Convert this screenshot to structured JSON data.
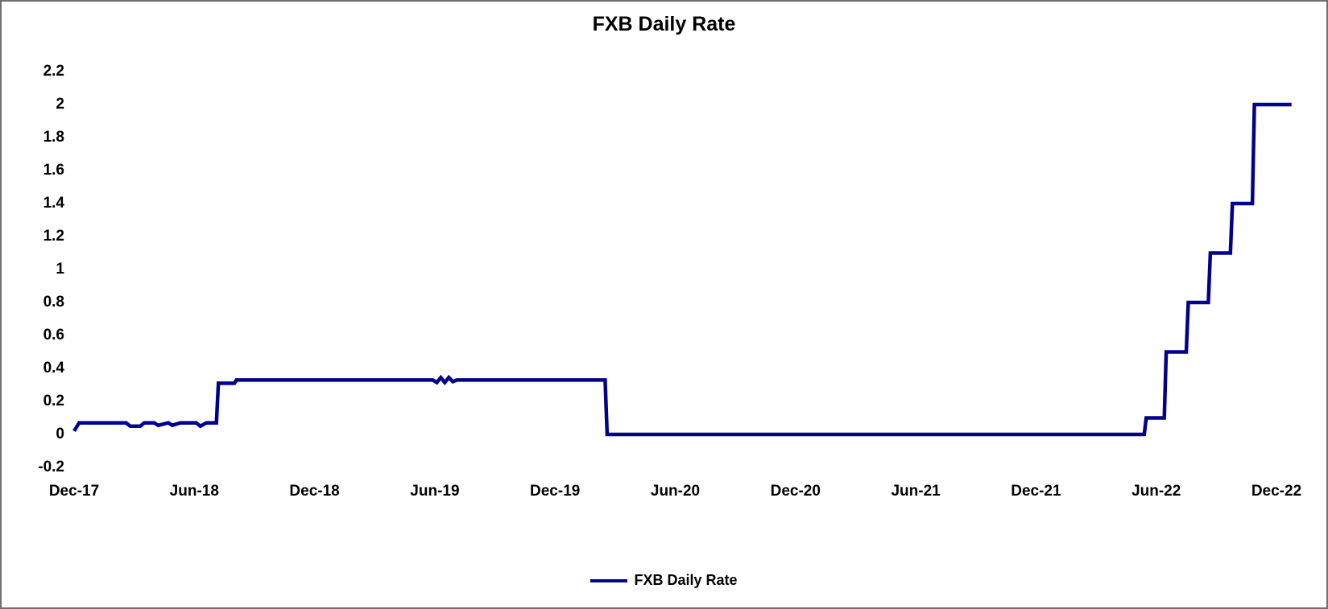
{
  "window": {
    "background_color": "#ffffff",
    "border_color": "#6e6e6e"
  },
  "chart_data": {
    "type": "line",
    "title": "FXB Daily Rate",
    "xlabel": "",
    "ylabel": "",
    "grid": false,
    "line_color": "#00008B",
    "text_color": "#000000",
    "legend": {
      "position": "bottom-center",
      "label": "FXB Daily Rate",
      "swatch_color": "#00008B"
    },
    "x_axis": {
      "unit": "months-since-Dec-2017",
      "range_months": [
        0,
        60.75
      ],
      "ticks": [
        {
          "label": "Dec-17",
          "month": 0
        },
        {
          "label": "Jun-18",
          "month": 6
        },
        {
          "label": "Dec-18",
          "month": 12
        },
        {
          "label": "Jun-19",
          "month": 18
        },
        {
          "label": "Dec-19",
          "month": 24
        },
        {
          "label": "Jun-20",
          "month": 30
        },
        {
          "label": "Dec-20",
          "month": 36
        },
        {
          "label": "Jun-21",
          "month": 42
        },
        {
          "label": "Dec-21",
          "month": 48
        },
        {
          "label": "Jun-22",
          "month": 54
        },
        {
          "label": "Dec-22",
          "month": 60
        }
      ]
    },
    "y_axis": {
      "range": [
        -0.2,
        2.2
      ],
      "ticks": [
        {
          "label": "2.2",
          "value": 2.2
        },
        {
          "label": "2",
          "value": 2.0
        },
        {
          "label": "1.8",
          "value": 1.8
        },
        {
          "label": "1.6",
          "value": 1.6
        },
        {
          "label": "1.4",
          "value": 1.4
        },
        {
          "label": "1.2",
          "value": 1.2
        },
        {
          "label": "1",
          "value": 1.0
        },
        {
          "label": "0.8",
          "value": 0.8
        },
        {
          "label": "0.6",
          "value": 0.6
        },
        {
          "label": "0.4",
          "value": 0.4
        },
        {
          "label": "0.2",
          "value": 0.2
        },
        {
          "label": "0",
          "value": 0.0
        },
        {
          "label": "-0.2",
          "value": -0.2
        }
      ]
    },
    "series": [
      {
        "name": "FXB Daily Rate",
        "color": "#00008B",
        "points_month_value": [
          [
            0,
            0.02
          ],
          [
            0.25,
            0.07
          ],
          [
            2.6,
            0.07
          ],
          [
            2.8,
            0.05
          ],
          [
            3.3,
            0.05
          ],
          [
            3.5,
            0.07
          ],
          [
            4.0,
            0.07
          ],
          [
            4.2,
            0.055
          ],
          [
            4.7,
            0.07
          ],
          [
            4.9,
            0.055
          ],
          [
            5.3,
            0.07
          ],
          [
            6.1,
            0.07
          ],
          [
            6.3,
            0.05
          ],
          [
            6.6,
            0.07
          ],
          [
            7.1,
            0.07
          ],
          [
            7.2,
            0.31
          ],
          [
            8.0,
            0.31
          ],
          [
            8.1,
            0.33
          ],
          [
            17.9,
            0.33
          ],
          [
            18.1,
            0.315
          ],
          [
            18.3,
            0.345
          ],
          [
            18.5,
            0.315
          ],
          [
            18.7,
            0.345
          ],
          [
            18.9,
            0.32
          ],
          [
            19.1,
            0.33
          ],
          [
            26.5,
            0.33
          ],
          [
            26.6,
            0.0
          ],
          [
            53.4,
            0.0
          ],
          [
            53.5,
            0.1
          ],
          [
            54.4,
            0.1
          ],
          [
            54.5,
            0.5
          ],
          [
            55.5,
            0.5
          ],
          [
            55.6,
            0.8
          ],
          [
            56.6,
            0.8
          ],
          [
            56.7,
            1.1
          ],
          [
            57.7,
            1.1
          ],
          [
            57.8,
            1.4
          ],
          [
            58.8,
            1.4
          ],
          [
            58.9,
            2.0
          ],
          [
            60.75,
            2.0
          ]
        ],
        "annotation": "Flat near 0.07 from Dec-17, step up to ~0.33 in Aug-18, drop to 0 in Mar-20, then monthly steps 0.1/0.5/0.8/1.1/1.4/2.0 from May-22 to Oct-22"
      }
    ]
  }
}
